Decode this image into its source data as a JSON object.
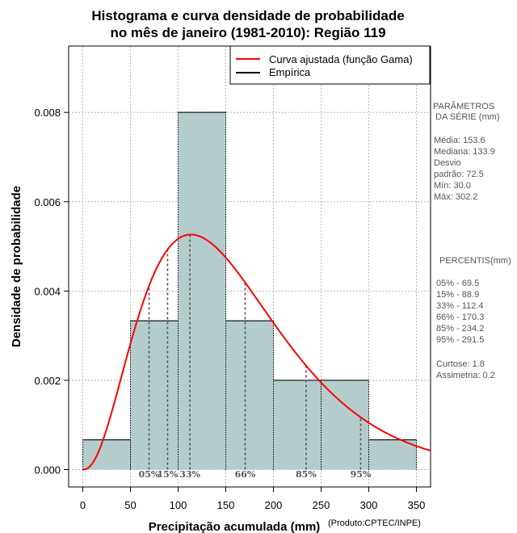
{
  "chart_data": {
    "type": "bar",
    "title_line1": "Histograma e curva densidade de probabilidade",
    "title_line2": "no mês de janeiro (1981-2010): Região 119",
    "xlabel": "Precipitação acumulada (mm)",
    "ylabel": "Densidade de probabilidade",
    "credit": "(Produto:CPTEC/INPE)",
    "xlim": [
      -10,
      365
    ],
    "ylim": [
      -0.0002,
      0.0095
    ],
    "x_ticks": [
      0,
      50,
      100,
      150,
      200,
      250,
      300,
      350
    ],
    "x_tick_labels": [
      "0",
      "50",
      "100",
      "150",
      "200",
      "250",
      "300",
      "350"
    ],
    "y_ticks": [
      0.0,
      0.002,
      0.004,
      0.006,
      0.008
    ],
    "y_tick_labels": [
      "0.000",
      "0.002",
      "0.004",
      "0.006",
      "0.008"
    ],
    "bins": [
      {
        "x0": 0,
        "x1": 50,
        "density": 0.000667
      },
      {
        "x0": 50,
        "x1": 100,
        "density": 0.003333
      },
      {
        "x0": 100,
        "x1": 150,
        "density": 0.008
      },
      {
        "x0": 150,
        "x1": 200,
        "density": 0.003333
      },
      {
        "x0": 200,
        "x1": 250,
        "density": 0.002
      },
      {
        "x0": 250,
        "x1": 300,
        "density": 0.002
      },
      {
        "x0": 300,
        "x1": 350,
        "density": 0.000667
      }
    ],
    "gamma_fit": {
      "shape": 3.4,
      "rate": 0.02116
    },
    "legend": [
      {
        "label": "Curva ajustada (função Gama)",
        "color": "#ff0000"
      },
      {
        "label": "Empírica",
        "color": "#000000"
      }
    ],
    "percentiles": [
      {
        "label": "05%",
        "value": 69.5
      },
      {
        "label": "15%",
        "value": 88.9
      },
      {
        "label": "33%",
        "value": 112.4
      },
      {
        "label": "66%",
        "value": 170.3
      },
      {
        "label": "85%",
        "value": 234.2
      },
      {
        "label": "95%",
        "value": 291.5
      }
    ],
    "colors": {
      "bar_fill": "#b4cccc",
      "curve": "#ff0000",
      "grid": "#aaaaaa",
      "percentile_line": "#555555"
    }
  },
  "side_panel": {
    "params_title_1": "PARÂMETROS",
    "params_title_2": "DA SÉRIE (mm)",
    "stats": [
      "Média:  153.6",
      "Mediana:  133.9",
      "Desvio",
      "padrão:  72.5",
      "Mín:  30.0",
      "Máx:  302.2"
    ],
    "pct_title": "PERCENTIS(mm)",
    "pct_lines": [
      "05% -  69.5",
      "15% -  88.9",
      "33% -  112.4",
      "66% -  170.3",
      "85% -  234.2",
      "95% -  291.5"
    ],
    "extra": [
      "Curtose:  1.8",
      "Assimetria:  0.2"
    ]
  }
}
